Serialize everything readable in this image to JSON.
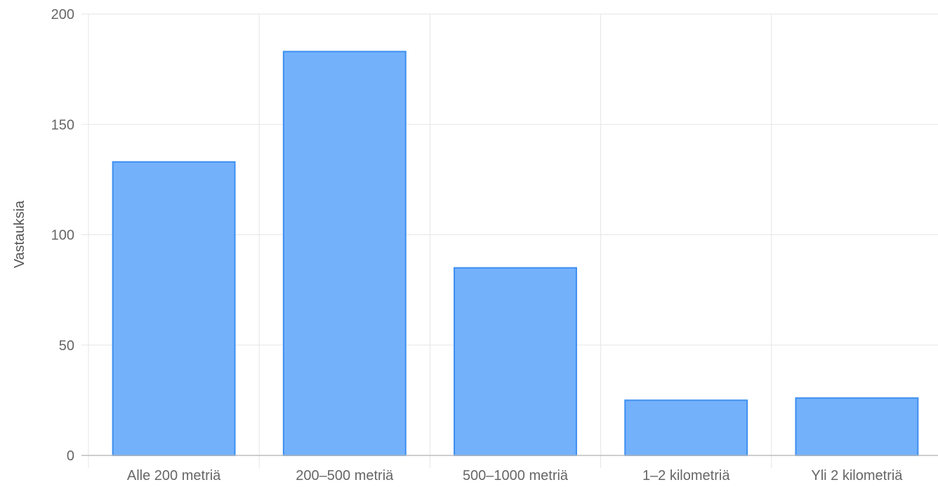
{
  "chart_data": {
    "type": "bar",
    "title": "",
    "xlabel": "",
    "ylabel": "Vastauksia",
    "categories": [
      "Alle 200 metriä",
      "200–500 metriä",
      "500–1000 metriä",
      "1–2 kilometriä",
      "Yli 2 kilometriä"
    ],
    "values": [
      133,
      183,
      85,
      25,
      26
    ],
    "ylim": [
      0,
      200
    ],
    "yticks": [
      0,
      50,
      100,
      150,
      200
    ],
    "grid": true,
    "legend": "none",
    "bar_fill": "#74b1fb",
    "bar_stroke": "#3d8fef",
    "grid_color": "#e5e5e5",
    "axis_color": "#bdbdbd"
  }
}
